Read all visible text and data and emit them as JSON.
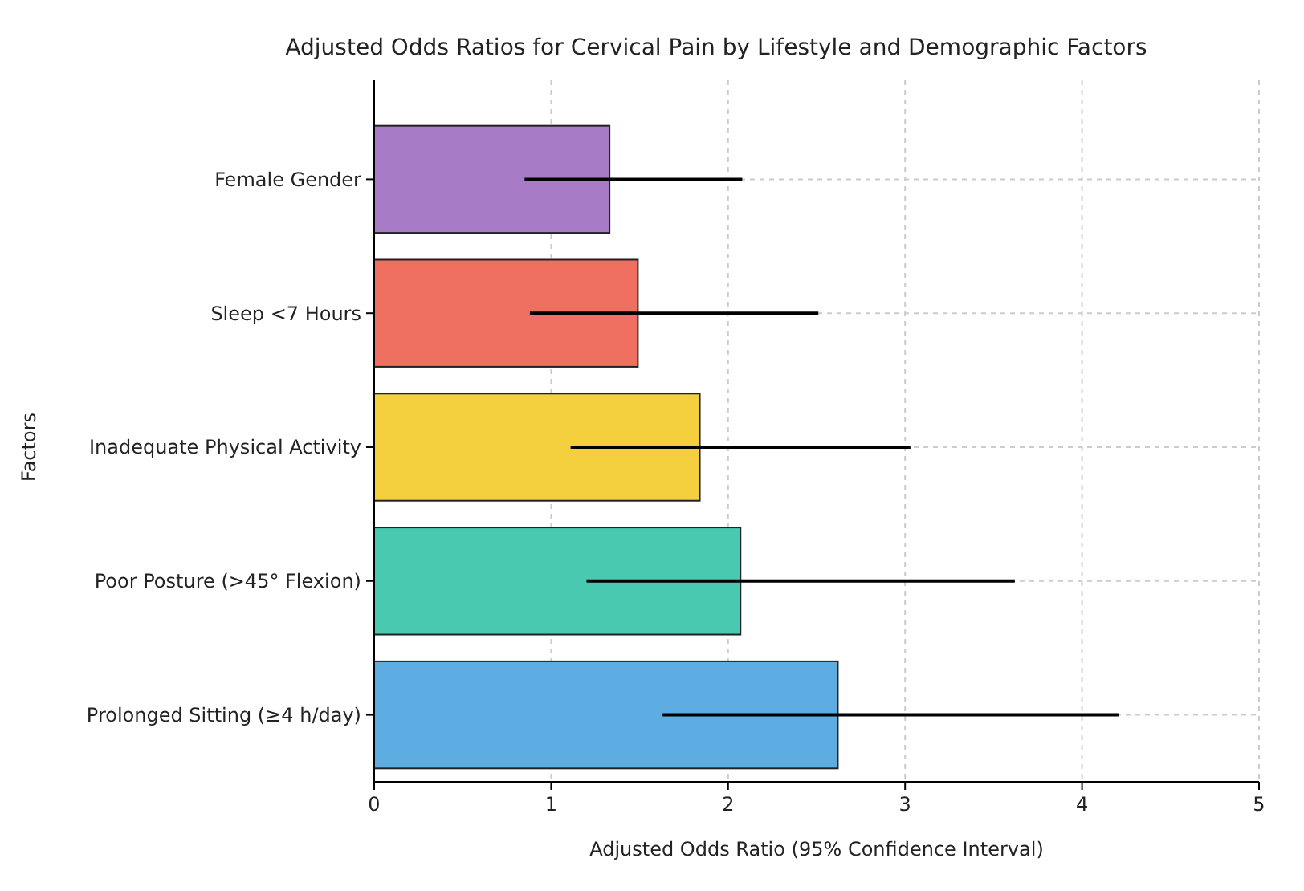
{
  "chart_data": {
    "type": "bar",
    "orientation": "horizontal",
    "title": "Adjusted Odds Ratios for Cervical Pain by Lifestyle and Demographic Factors",
    "xlabel": "Adjusted Odds Ratio (95% Confidence Interval)",
    "ylabel": "Factors",
    "categories": [
      "Female Gender",
      "Sleep <7 Hours",
      "Inadequate Physical Activity",
      "Poor Posture (>45° Flexion)",
      "Prolonged Sitting (≥4 h/day)"
    ],
    "values": [
      1.33,
      1.49,
      1.84,
      2.07,
      2.62
    ],
    "errors": [
      [
        0.85,
        2.08
      ],
      [
        0.88,
        2.51
      ],
      [
        1.11,
        3.03
      ],
      [
        1.2,
        3.62
      ],
      [
        1.63,
        4.21
      ]
    ],
    "colors": [
      "#a87bc7",
      "#ef6f61",
      "#f4d03f",
      "#48c9b0",
      "#5dade2"
    ],
    "xlim": [
      0,
      5
    ],
    "xticks": [
      0,
      1,
      2,
      3,
      4,
      5
    ],
    "grid": true
  }
}
